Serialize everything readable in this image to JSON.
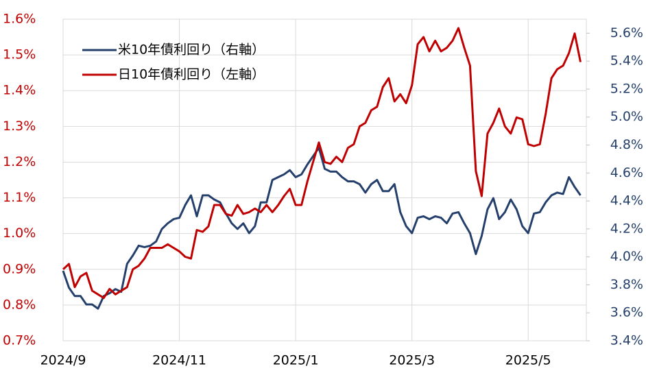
{
  "chart_data": {
    "type": "line",
    "x": [
      0,
      0.1,
      0.2,
      0.3,
      0.4,
      0.5,
      0.6,
      0.7,
      0.8,
      0.9,
      1.0,
      1.1,
      1.2,
      1.3,
      1.4,
      1.5,
      1.6,
      1.7,
      1.8,
      1.9,
      2.0,
      2.1,
      2.2,
      2.3,
      2.4,
      2.5,
      2.6,
      2.7,
      2.8,
      2.9,
      3.0,
      3.1,
      3.2,
      3.3,
      3.4,
      3.5,
      3.6,
      3.7,
      3.8,
      3.9,
      4.0,
      4.1,
      4.2,
      4.3,
      4.4,
      4.5,
      4.6,
      4.7,
      4.8,
      4.9,
      5.0,
      5.1,
      5.2,
      5.3,
      5.4,
      5.5,
      5.6,
      5.7,
      5.8,
      5.9,
      6.0,
      6.1,
      6.2,
      6.3,
      6.4,
      6.5,
      6.6,
      6.7,
      6.8,
      6.9,
      7.0,
      7.1,
      7.2,
      7.3,
      7.4,
      7.5,
      7.6,
      7.7,
      7.8,
      7.9,
      8.0,
      8.1,
      8.2,
      8.3,
      8.4,
      8.5,
      8.6,
      8.7,
      8.8,
      8.9
    ],
    "xlim": [
      0,
      9
    ],
    "xticks": [
      {
        "value": 0,
        "label": "2024/9"
      },
      {
        "value": 2,
        "label": "2024/11"
      },
      {
        "value": 4,
        "label": "2025/1"
      },
      {
        "value": 6,
        "label": "2025/3"
      },
      {
        "value": 8,
        "label": "2025/5"
      }
    ],
    "ylim": [
      0.7,
      1.6
    ],
    "yticks": [
      {
        "value": 0.7,
        "label": "0.7%"
      },
      {
        "value": 0.8,
        "label": "0.8%"
      },
      {
        "value": 0.9,
        "label": "0.9%"
      },
      {
        "value": 1.0,
        "label": "1.0%"
      },
      {
        "value": 1.1,
        "label": "1.1%"
      },
      {
        "value": 1.2,
        "label": "1.2%"
      },
      {
        "value": 1.3,
        "label": "1.3%"
      },
      {
        "value": 1.4,
        "label": "1.4%"
      },
      {
        "value": 1.5,
        "label": "1.5%"
      },
      {
        "value": 1.6,
        "label": "1.6%"
      }
    ],
    "y2lim": [
      3.4,
      5.7
    ],
    "y2ticks": [
      {
        "value": 3.4,
        "label": "3.4%"
      },
      {
        "value": 3.6,
        "label": "3.6%"
      },
      {
        "value": 3.8,
        "label": "3.8%"
      },
      {
        "value": 4.0,
        "label": "4.0%"
      },
      {
        "value": 4.2,
        "label": "4.2%"
      },
      {
        "value": 4.4,
        "label": "4.4%"
      },
      {
        "value": 4.6,
        "label": "4.6%"
      },
      {
        "value": 4.8,
        "label": "4.8%"
      },
      {
        "value": 5.0,
        "label": "5.0%"
      },
      {
        "value": 5.2,
        "label": "5.2%"
      },
      {
        "value": 5.4,
        "label": "5.4%"
      },
      {
        "value": 5.6,
        "label": "5.6%"
      }
    ],
    "grid": true,
    "legend": "upper left",
    "y_label_color": "#c00000",
    "y2_label_color": "#243f6b",
    "series": [
      {
        "name": "米10年債利回り（右軸）",
        "color": "#243f6b",
        "axis": "y2",
        "values": [
          3.9,
          3.78,
          3.72,
          3.72,
          3.66,
          3.66,
          3.63,
          3.72,
          3.74,
          3.77,
          3.75,
          3.95,
          4.01,
          4.08,
          4.07,
          4.08,
          4.11,
          4.2,
          4.24,
          4.27,
          4.28,
          4.37,
          4.44,
          4.29,
          4.44,
          4.44,
          4.41,
          4.39,
          4.31,
          4.24,
          4.2,
          4.24,
          4.17,
          4.22,
          4.39,
          4.39,
          4.55,
          4.57,
          4.59,
          4.62,
          4.57,
          4.59,
          4.66,
          4.72,
          4.78,
          4.63,
          4.61,
          4.61,
          4.57,
          4.54,
          4.54,
          4.52,
          4.46,
          4.52,
          4.55,
          4.47,
          4.47,
          4.52,
          4.32,
          4.22,
          4.17,
          4.28,
          4.29,
          4.27,
          4.29,
          4.28,
          4.24,
          4.31,
          4.32,
          4.24,
          4.17,
          4.02,
          4.15,
          4.34,
          4.42,
          4.27,
          4.32,
          4.41,
          4.34,
          4.22,
          4.17,
          4.31,
          4.32,
          4.39,
          4.44,
          4.46,
          4.45,
          4.57,
          4.5,
          4.44
        ]
      },
      {
        "name": "日10年債利回り（左軸）",
        "color": "#c00000",
        "axis": "y",
        "values": [
          0.9,
          0.915,
          0.85,
          0.88,
          0.89,
          0.84,
          0.83,
          0.82,
          0.845,
          0.83,
          0.84,
          0.85,
          0.9,
          0.91,
          0.93,
          0.96,
          0.96,
          0.96,
          0.97,
          0.96,
          0.95,
          0.935,
          0.93,
          1.01,
          1.005,
          1.02,
          1.08,
          1.08,
          1.055,
          1.05,
          1.08,
          1.055,
          1.06,
          1.07,
          1.06,
          1.08,
          1.06,
          1.08,
          1.105,
          1.125,
          1.08,
          1.08,
          1.145,
          1.2,
          1.255,
          1.2,
          1.195,
          1.215,
          1.2,
          1.24,
          1.25,
          1.3,
          1.31,
          1.345,
          1.355,
          1.41,
          1.435,
          1.37,
          1.39,
          1.365,
          1.415,
          1.53,
          1.55,
          1.51,
          1.54,
          1.51,
          1.52,
          1.54,
          1.575,
          1.52,
          1.47,
          1.175,
          1.105,
          1.28,
          1.31,
          1.35,
          1.3,
          1.28,
          1.325,
          1.32,
          1.25,
          1.245,
          1.25,
          1.335,
          1.435,
          1.46,
          1.47,
          1.505,
          1.56,
          1.48
        ]
      }
    ]
  }
}
